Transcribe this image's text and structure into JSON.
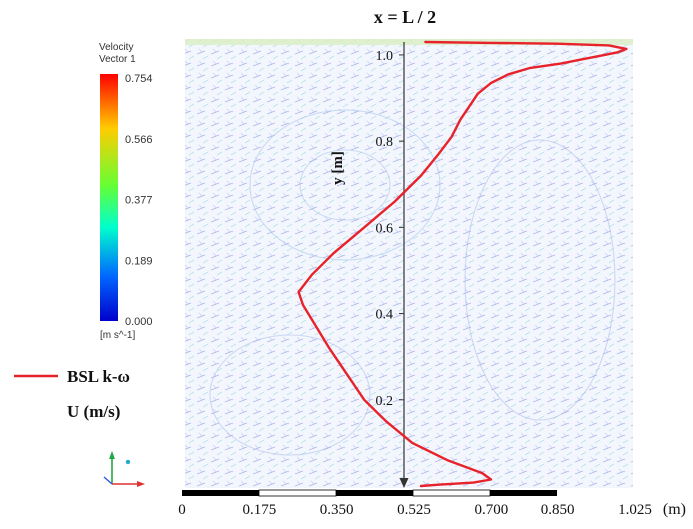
{
  "chart_data": {
    "type": "line",
    "title": "x = L / 2",
    "background": "velocity vector field (CFD contour)",
    "colorbar": {
      "title_line1": "Velocity",
      "title_line2": "Vector 1",
      "ticks": [
        "0.754",
        "0.566",
        "0.377",
        "0.189",
        "0.000"
      ],
      "unit": "[m s^-1]",
      "range": [
        0.0,
        0.754
      ],
      "colors": [
        "#ff0000",
        "#ffcc00",
        "#66ff33",
        "#00ffcc",
        "#0066ff",
        "#0000cc"
      ]
    },
    "y_axis": {
      "label": "y  [m]",
      "range": [
        0,
        1.03
      ],
      "ticks": [
        "1.0",
        "0.8",
        "0.6",
        "0.4",
        "0.2"
      ],
      "tick_values": [
        1.0,
        0.8,
        0.6,
        0.4,
        0.2
      ]
    },
    "x_axis": {
      "unit_label": "(m)",
      "range": [
        0,
        1.025
      ],
      "ticks": [
        "0",
        "0.175",
        "0.350",
        "0.525",
        "0.700",
        "0.850",
        "1.025"
      ],
      "tick_values": [
        0,
        0.175,
        0.35,
        0.525,
        0.7,
        0.85,
        1.025
      ]
    },
    "legend": {
      "series_label": "BSL k-ω",
      "quantity_label": "U (m/s)",
      "placement": "bottom-left"
    },
    "series": [
      {
        "name": "BSL k-ω",
        "color": "#e8222a",
        "x": [
          0.54,
          0.58,
          0.66,
          0.7,
          0.68,
          0.6,
          0.52,
          0.46,
          0.41,
          0.37,
          0.33,
          0.3,
          0.27,
          0.26,
          0.29,
          0.34,
          0.41,
          0.48,
          0.54,
          0.58,
          0.61,
          0.63,
          0.65,
          0.67,
          0.7,
          0.74,
          0.79,
          0.86,
          0.91,
          0.95,
          0.99,
          1.01,
          0.97,
          0.85,
          0.7,
          0.55
        ],
        "y": [
          0.0,
          0.003,
          0.008,
          0.015,
          0.03,
          0.06,
          0.1,
          0.15,
          0.2,
          0.26,
          0.32,
          0.37,
          0.42,
          0.45,
          0.49,
          0.54,
          0.6,
          0.66,
          0.72,
          0.77,
          0.81,
          0.85,
          0.88,
          0.91,
          0.935,
          0.955,
          0.97,
          0.98,
          0.99,
          0.998,
          1.006,
          1.014,
          1.022,
          1.026,
          1.028,
          1.03
        ]
      }
    ]
  }
}
